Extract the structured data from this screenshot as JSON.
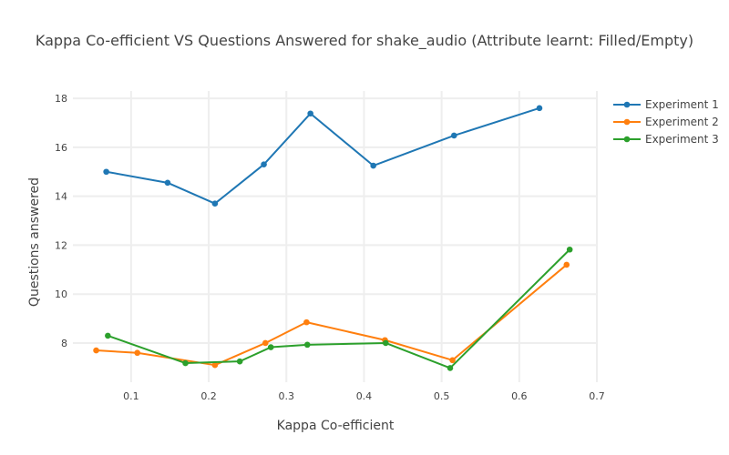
{
  "chart_data": {
    "type": "line",
    "title": "Kappa Co-efficient VS Questions Answered for shake_audio (Attribute learnt: Filled/Empty)",
    "xlabel": "Kappa Co-efficient",
    "ylabel": "Questions answered",
    "xlim": [
      0.025,
      0.7
    ],
    "ylim": [
      6.4,
      18.3
    ],
    "x_ticks": [
      0.1,
      0.2,
      0.3,
      0.4,
      0.5,
      0.6,
      0.7
    ],
    "x_tick_labels": [
      "0.1",
      "0.2",
      "0.3",
      "0.4",
      "0.5",
      "0.6",
      "0.7"
    ],
    "y_ticks": [
      8,
      10,
      12,
      14,
      16,
      18
    ],
    "y_tick_labels": [
      "8",
      "10",
      "12",
      "14",
      "16",
      "18"
    ],
    "grid": true,
    "legend_position": "top-right",
    "series": [
      {
        "name": "Experiment 1",
        "color": "#1f77b4",
        "x": [
          0.068,
          0.147,
          0.208,
          0.271,
          0.331,
          0.412,
          0.516,
          0.626
        ],
        "y": [
          15.0,
          14.55,
          13.7,
          15.3,
          17.38,
          15.25,
          16.48,
          17.6
        ]
      },
      {
        "name": "Experiment 2",
        "color": "#ff7f0e",
        "x": [
          0.055,
          0.108,
          0.208,
          0.273,
          0.326,
          0.427,
          0.514,
          0.661
        ],
        "y": [
          7.7,
          7.6,
          7.1,
          8.0,
          8.85,
          8.12,
          7.3,
          11.2
        ]
      },
      {
        "name": "Experiment 3",
        "color": "#2ca02c",
        "x": [
          0.07,
          0.17,
          0.24,
          0.28,
          0.327,
          0.428,
          0.511,
          0.665
        ],
        "y": [
          8.3,
          7.18,
          7.25,
          7.83,
          7.93,
          8.0,
          6.98,
          11.82
        ]
      }
    ]
  }
}
